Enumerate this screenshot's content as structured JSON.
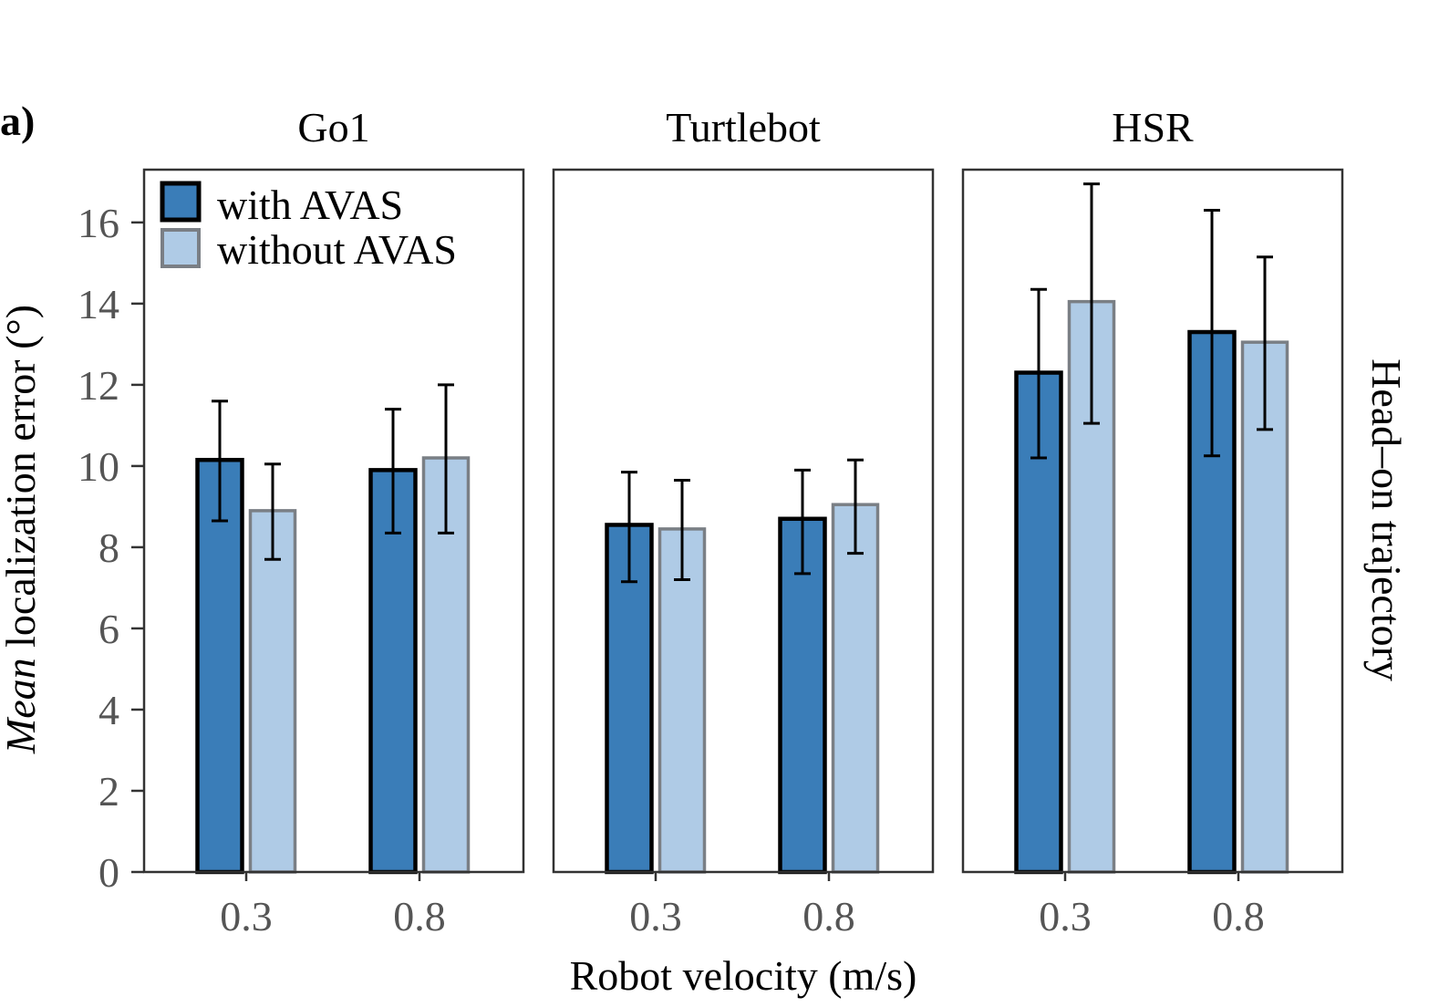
{
  "chart_data": {
    "type": "bar",
    "panel_label": "a)",
    "ylabel_italic": "Mean",
    "ylabel_rest": " localization error (°)",
    "xlabel": "Robot velocity (m/s)",
    "row_label": "Head–on trajectory",
    "ylim": [
      0,
      17.3
    ],
    "yticks": [
      0,
      2,
      4,
      6,
      8,
      10,
      12,
      14,
      16
    ],
    "categories": [
      "0.3",
      "0.8"
    ],
    "legend": {
      "position": "top-left",
      "entries": [
        "with AVAS",
        "without AVAS"
      ]
    },
    "colors": {
      "with": "#3a7db8",
      "without": "#afcbe6",
      "with_edge": "#000000",
      "without_edge": "#7a7f85",
      "frame": "#333333"
    },
    "panels": [
      {
        "title": "Go1",
        "series": [
          {
            "name": "with AVAS",
            "values": [
              10.15,
              9.9
            ],
            "err_low": [
              8.65,
              8.35
            ],
            "err_high": [
              11.6,
              11.4
            ]
          },
          {
            "name": "without AVAS",
            "values": [
              8.9,
              10.2
            ],
            "err_low": [
              7.7,
              8.35
            ],
            "err_high": [
              10.05,
              12.0
            ]
          }
        ]
      },
      {
        "title": "Turtlebot",
        "series": [
          {
            "name": "with AVAS",
            "values": [
              8.55,
              8.7
            ],
            "err_low": [
              7.15,
              7.35
            ],
            "err_high": [
              9.85,
              9.9
            ]
          },
          {
            "name": "without AVAS",
            "values": [
              8.45,
              9.05
            ],
            "err_low": [
              7.2,
              7.85
            ],
            "err_high": [
              9.65,
              10.15
            ]
          }
        ]
      },
      {
        "title": "HSR",
        "series": [
          {
            "name": "with AVAS",
            "values": [
              12.3,
              13.3
            ],
            "err_low": [
              10.2,
              10.25
            ],
            "err_high": [
              14.35,
              16.3
            ]
          },
          {
            "name": "without AVAS",
            "values": [
              14.05,
              13.05
            ],
            "err_low": [
              11.05,
              10.9
            ],
            "err_high": [
              16.95,
              15.15
            ]
          }
        ]
      }
    ]
  }
}
